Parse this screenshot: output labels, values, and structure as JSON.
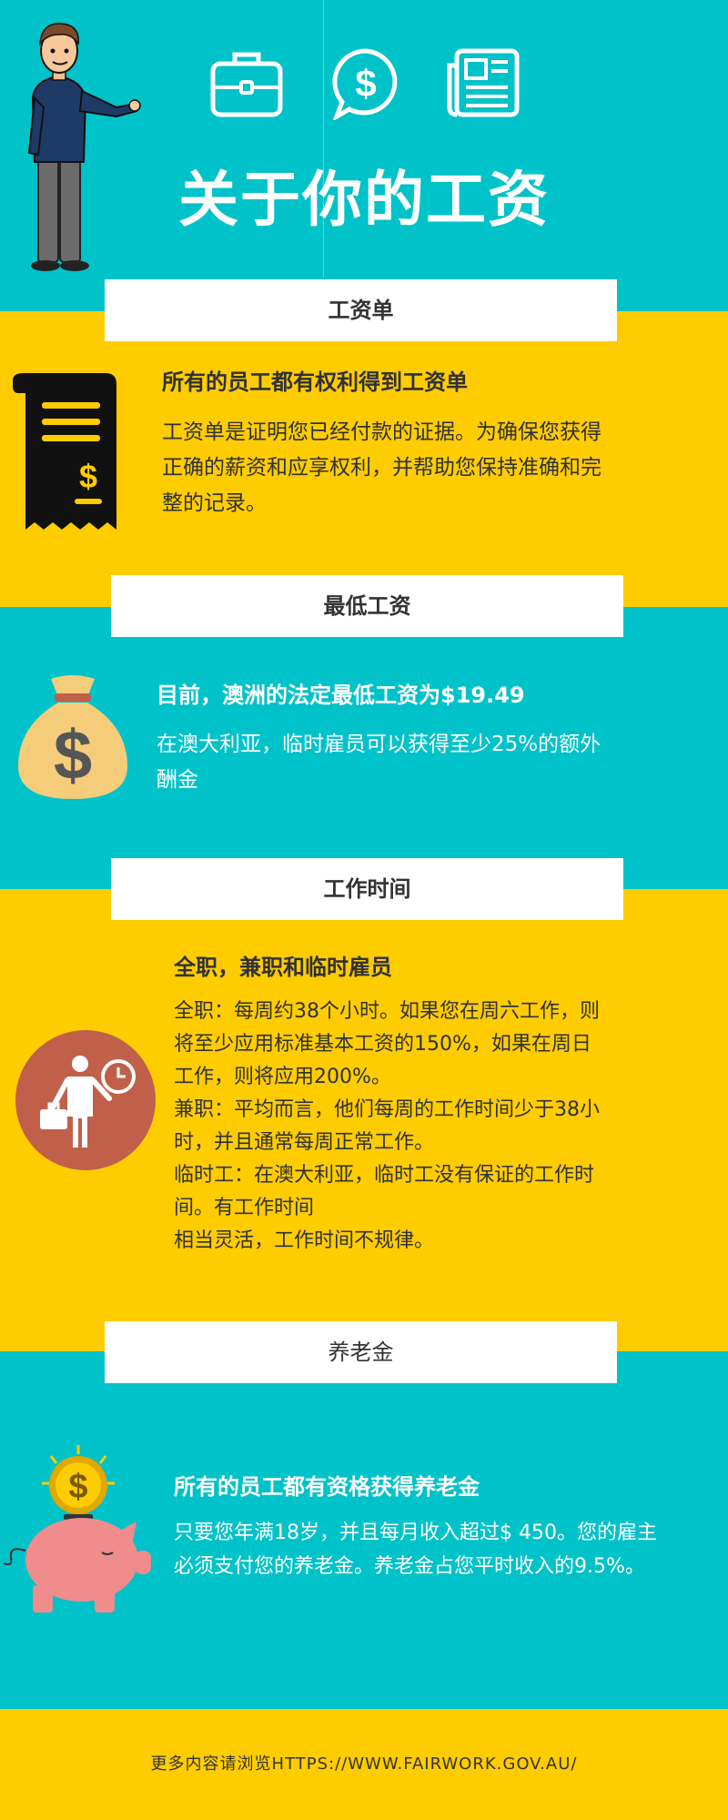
{
  "header": {
    "title": "关于你的工资",
    "icons": [
      "briefcase-icon",
      "dollar-speech-bubble-icon",
      "newspaper-icon"
    ]
  },
  "sections": {
    "payslip": {
      "label": "工资单",
      "heading": "所有的员工都有权利得到工资单",
      "lines": [
        "工资单是证明您已经付款的证据。为确保您获得",
        "正确的薪资和应享权利，并帮助您保持准确和完",
        "整的记录。"
      ]
    },
    "minwage": {
      "label": "最低工资",
      "heading": "目前，澳洲的法定最低工资为$19.49",
      "lines": [
        "在澳大利亚，临时雇员可以获得至少25%的额外",
        "酬金"
      ]
    },
    "worktime": {
      "label": "工作时间",
      "heading": "全职，兼职和临时雇员",
      "lines": [
        "全职：每周约38个小时。如果您在周六工作，则",
        "将至少应用标准基本工资的150%，如果在周日",
        "工作，则将应用200%。",
        "兼职：平均而言，他们每周的工作时间少于38小",
        "时，并且通常每周正常工作。",
        "临时工：在澳大利亚，临时工没有保证的工作时",
        "间。有工作时间",
        "相当灵活，工作时间不规律。"
      ]
    },
    "super": {
      "label": "养老金",
      "heading": "所有的员工都有资格获得养老金",
      "lines": [
        "只要您年满18岁，并且每月收入超过$ 450。您的雇主",
        "必须支付您的养老金。养老金占您平时收入的9.5%。"
      ]
    }
  },
  "footer": {
    "text": "更多内容请浏览HTTPS://WWW.FAIRWORK.GOV.AU/"
  },
  "colors": {
    "teal": "#00c2c9",
    "yellow": "#ffcc00",
    "brick": "#c0604a",
    "pink": "#f08c8c"
  }
}
